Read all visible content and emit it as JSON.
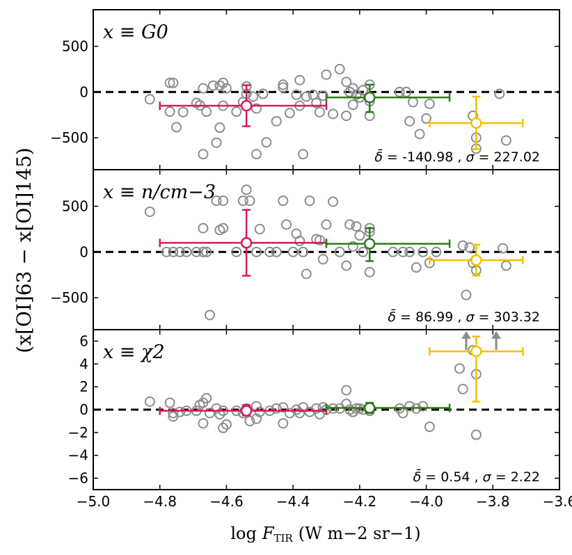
{
  "chart_data": {
    "type": "scatter",
    "x_axis": {
      "label_prefix": "log",
      "label_var": "F",
      "label_sub": "TIR",
      "label_units": "(W m−2 sr−1)",
      "xlim": [
        -5.0,
        -3.6
      ],
      "ticks": [
        -5.0,
        -4.8,
        -4.6,
        -4.4,
        -4.2,
        -4.0,
        -3.8,
        -3.6
      ],
      "tick_labels": [
        "−5.0",
        "−4.8",
        "−4.6",
        "−4.4",
        "−4.2",
        "−4.0",
        "−3.8",
        "−3.6"
      ]
    },
    "y_axis_label": "(x[OI]63 − x[OI]145)",
    "colors": {
      "points": "#8c8c8c",
      "bin1": "#d6185b",
      "bin2": "#2f7a19",
      "bin3": "#f5c000",
      "zero_line": "#000000"
    },
    "panels": [
      {
        "label": "x ≡ G0",
        "stat_delta": "-140.98",
        "stat_sigma": "227.02",
        "ylim": [
          -850,
          900
        ],
        "yticks": [
          500,
          0,
          -500
        ],
        "ytick_labels": [
          "500",
          "0",
          "−500"
        ],
        "points": [
          [
            -4.83,
            -80
          ],
          [
            -4.77,
            100
          ],
          [
            -4.76,
            100
          ],
          [
            -4.77,
            -215
          ],
          [
            -4.75,
            -385
          ],
          [
            -4.73,
            -220
          ],
          [
            -4.69,
            -120
          ],
          [
            -4.68,
            -145
          ],
          [
            -4.67,
            -680
          ],
          [
            -4.67,
            40
          ],
          [
            -4.66,
            -215
          ],
          [
            -4.64,
            70
          ],
          [
            -4.63,
            -555
          ],
          [
            -4.62,
            -390
          ],
          [
            -4.61,
            -150
          ],
          [
            -4.62,
            70
          ],
          [
            -4.61,
            100
          ],
          [
            -4.6,
            40
          ],
          [
            -4.57,
            -215
          ],
          [
            -4.55,
            -110
          ],
          [
            -4.54,
            -20
          ],
          [
            -4.54,
            60
          ],
          [
            -4.52,
            -50
          ],
          [
            -4.51,
            -180
          ],
          [
            -4.51,
            -680
          ],
          [
            -4.49,
            -20
          ],
          [
            -4.48,
            -550
          ],
          [
            -4.45,
            -320
          ],
          [
            -4.43,
            80
          ],
          [
            -4.43,
            50
          ],
          [
            -4.41,
            -230
          ],
          [
            -4.39,
            -30
          ],
          [
            -4.38,
            -150
          ],
          [
            -4.38,
            130
          ],
          [
            -4.37,
            -680
          ],
          [
            -4.36,
            -50
          ],
          [
            -4.34,
            -30
          ],
          [
            -4.33,
            -120
          ],
          [
            -4.32,
            -220
          ],
          [
            -4.31,
            -40
          ],
          [
            -4.3,
            190
          ],
          [
            -4.28,
            -240
          ],
          [
            -4.26,
            250
          ],
          [
            -4.24,
            -260
          ],
          [
            -4.24,
            110
          ],
          [
            -4.23,
            0
          ],
          [
            -4.22,
            40
          ],
          [
            -4.22,
            -140
          ],
          [
            -4.21,
            -30
          ],
          [
            -4.2,
            -60
          ],
          [
            -4.19,
            20
          ],
          [
            -4.17,
            -260
          ],
          [
            -4.17,
            -100
          ],
          [
            -4.17,
            80
          ],
          [
            -4.08,
            0
          ],
          [
            -4.06,
            0
          ],
          [
            -4.05,
            -320
          ],
          [
            -4.04,
            -110
          ],
          [
            -4.02,
            -460
          ],
          [
            -4.0,
            -290
          ],
          [
            -3.99,
            -130
          ],
          [
            -3.86,
            -260
          ],
          [
            -3.85,
            -500
          ],
          [
            -3.85,
            -620
          ],
          [
            -3.78,
            -20
          ],
          [
            -3.76,
            -530
          ]
        ],
        "bins": [
          {
            "x": -4.54,
            "y": -150,
            "xmin": -4.8,
            "xmax": -4.3,
            "ymin": -375,
            "ymax": 75,
            "color": "#d6185b"
          },
          {
            "x": -4.17,
            "y": -60,
            "xmin": -4.3,
            "xmax": -3.93,
            "ymin": -220,
            "ymax": 80,
            "color": "#2f7a19"
          },
          {
            "x": -3.85,
            "y": -340,
            "xmin": -3.99,
            "xmax": -3.71,
            "ymin": -625,
            "ymax": -50,
            "color": "#f5c000"
          }
        ],
        "arrows_x": []
      },
      {
        "label": "x ≡ n/cm−3",
        "stat_delta": "86.99",
        "stat_sigma": "303.32",
        "ylim": [
          -850,
          900
        ],
        "yticks": [
          500,
          0,
          -500
        ],
        "ytick_labels": [
          "500",
          "0",
          "−500"
        ],
        "points": [
          [
            -4.83,
            440
          ],
          [
            -4.78,
            0
          ],
          [
            -4.76,
            0
          ],
          [
            -4.74,
            0
          ],
          [
            -4.72,
            0
          ],
          [
            -4.69,
            0
          ],
          [
            -4.67,
            0
          ],
          [
            -4.67,
            260
          ],
          [
            -4.66,
            0
          ],
          [
            -4.65,
            -690
          ],
          [
            -4.63,
            560
          ],
          [
            -4.62,
            240
          ],
          [
            -4.61,
            560
          ],
          [
            -4.61,
            260
          ],
          [
            -4.57,
            0
          ],
          [
            -4.55,
            560
          ],
          [
            -4.54,
            680
          ],
          [
            -4.53,
            560
          ],
          [
            -4.51,
            0
          ],
          [
            -4.5,
            250
          ],
          [
            -4.47,
            0
          ],
          [
            -4.45,
            0
          ],
          [
            -4.43,
            560
          ],
          [
            -4.42,
            300
          ],
          [
            -4.4,
            0
          ],
          [
            -4.39,
            200
          ],
          [
            -4.38,
            120
          ],
          [
            -4.37,
            0
          ],
          [
            -4.36,
            -240
          ],
          [
            -4.35,
            560
          ],
          [
            -4.33,
            140
          ],
          [
            -4.32,
            130
          ],
          [
            -4.31,
            -80
          ],
          [
            -4.3,
            300
          ],
          [
            -4.28,
            550
          ],
          [
            -4.26,
            0
          ],
          [
            -4.24,
            -150
          ],
          [
            -4.23,
            300
          ],
          [
            -4.22,
            60
          ],
          [
            -4.21,
            280
          ],
          [
            -4.2,
            180
          ],
          [
            -4.19,
            0
          ],
          [
            -4.17,
            220
          ],
          [
            -4.17,
            260
          ],
          [
            -4.17,
            -220
          ],
          [
            -4.1,
            0
          ],
          [
            -4.07,
            0
          ],
          [
            -4.05,
            0
          ],
          [
            -4.03,
            -170
          ],
          [
            -4.01,
            0
          ],
          [
            -3.99,
            -120
          ],
          [
            -3.97,
            0
          ],
          [
            -3.89,
            70
          ],
          [
            -3.87,
            50
          ],
          [
            -3.86,
            -120
          ],
          [
            -3.85,
            -200
          ],
          [
            -3.77,
            40
          ],
          [
            -3.76,
            -150
          ],
          [
            -3.88,
            -470
          ]
        ],
        "bins": [
          {
            "x": -4.54,
            "y": 100,
            "xmin": -4.8,
            "xmax": -4.3,
            "ymin": -260,
            "ymax": 460,
            "color": "#d6185b"
          },
          {
            "x": -4.17,
            "y": 90,
            "xmin": -4.3,
            "xmax": -3.93,
            "ymin": -100,
            "ymax": 260,
            "color": "#2f7a19"
          },
          {
            "x": -3.85,
            "y": -90,
            "xmin": -3.99,
            "xmax": -3.71,
            "ymin": -260,
            "ymax": 80,
            "color": "#f5c000"
          }
        ],
        "arrows_x": []
      },
      {
        "label": "x ≡ χ2",
        "stat_delta": "0.54",
        "stat_sigma": "2.22",
        "ylim": [
          -7,
          7
        ],
        "yticks": [
          6,
          4,
          2,
          0,
          -2,
          -4,
          -6
        ],
        "ytick_labels": [
          "6",
          "4",
          "2",
          "0",
          "−2",
          "−4",
          "−6"
        ],
        "points": [
          [
            -4.83,
            0.7
          ],
          [
            -4.77,
            0.6
          ],
          [
            -4.76,
            -0.3
          ],
          [
            -4.76,
            -0.6
          ],
          [
            -4.74,
            -0.2
          ],
          [
            -4.72,
            -0.1
          ],
          [
            -4.69,
            -0.1
          ],
          [
            -4.68,
            0.4
          ],
          [
            -4.67,
            0.6
          ],
          [
            -4.67,
            -1.2
          ],
          [
            -4.66,
            1.0
          ],
          [
            -4.65,
            -0.3
          ],
          [
            -4.63,
            0.1
          ],
          [
            -4.62,
            -0.4
          ],
          [
            -4.61,
            -1.6
          ],
          [
            -4.61,
            -0.1
          ],
          [
            -4.6,
            -1.3
          ],
          [
            -4.57,
            -0.1
          ],
          [
            -4.55,
            -0.3
          ],
          [
            -4.54,
            0.1
          ],
          [
            -4.53,
            -1.0
          ],
          [
            -4.51,
            -0.8
          ],
          [
            -4.51,
            0.3
          ],
          [
            -4.5,
            -0.2
          ],
          [
            -4.47,
            -0.1
          ],
          [
            -4.45,
            0.1
          ],
          [
            -4.43,
            0.2
          ],
          [
            -4.43,
            -1.2
          ],
          [
            -4.41,
            -0.3
          ],
          [
            -4.39,
            0.0
          ],
          [
            -4.38,
            -0.3
          ],
          [
            -4.37,
            0.2
          ],
          [
            -4.35,
            -0.2
          ],
          [
            -4.33,
            0.1
          ],
          [
            -4.32,
            -0.4
          ],
          [
            -4.31,
            0.2
          ],
          [
            -4.3,
            0.0
          ],
          [
            -4.28,
            0.1
          ],
          [
            -4.26,
            0.1
          ],
          [
            -4.24,
            1.7
          ],
          [
            -4.24,
            0.5
          ],
          [
            -4.23,
            0.0
          ],
          [
            -4.22,
            -0.2
          ],
          [
            -4.21,
            0.1
          ],
          [
            -4.2,
            0.1
          ],
          [
            -4.19,
            0.0
          ],
          [
            -4.17,
            -0.1
          ],
          [
            -4.08,
            0.1
          ],
          [
            -4.07,
            -0.3
          ],
          [
            -4.05,
            0.3
          ],
          [
            -4.03,
            0.1
          ],
          [
            -4.01,
            0.3
          ],
          [
            -3.99,
            -1.5
          ],
          [
            -3.9,
            3.6
          ],
          [
            -3.89,
            1.8
          ],
          [
            -3.86,
            5.2
          ],
          [
            -3.85,
            3.1
          ],
          [
            -3.85,
            -2.2
          ]
        ],
        "bins": [
          {
            "x": -4.54,
            "y": -0.1,
            "xmin": -4.8,
            "xmax": -4.3,
            "ymin": -0.5,
            "ymax": 0.4,
            "color": "#d6185b"
          },
          {
            "x": -4.17,
            "y": 0.15,
            "xmin": -4.3,
            "xmax": -3.93,
            "ymin": -0.3,
            "ymax": 0.6,
            "color": "#2f7a19"
          },
          {
            "x": -3.85,
            "y": 5.1,
            "xmin": -3.99,
            "xmax": -3.71,
            "ymin": 0.7,
            "ymax": 6.4,
            "color": "#f5c000"
          }
        ],
        "arrows_x": [
          -3.88,
          -3.79
        ]
      }
    ]
  }
}
